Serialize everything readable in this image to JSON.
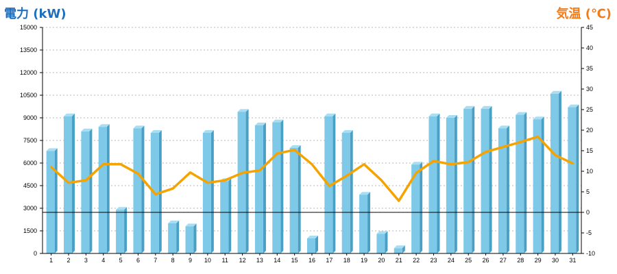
{
  "chart_data": {
    "type": "bar+line",
    "y_left": {
      "label": "電力 (kW)",
      "color": "#1f6fbf",
      "range": [
        0,
        15000
      ],
      "ticks": [
        0,
        1500,
        3000,
        4500,
        6000,
        7500,
        9000,
        10500,
        12000,
        13500,
        15000
      ]
    },
    "y_right": {
      "label": "気温 (℃)",
      "color": "#f07c1c",
      "range": [
        -10,
        45
      ],
      "ticks": [
        -10,
        -5,
        0,
        5,
        10,
        15,
        20,
        25,
        30,
        35,
        40,
        45
      ]
    },
    "categories": [
      "1",
      "2",
      "3",
      "4",
      "5",
      "6",
      "7",
      "8",
      "9",
      "10",
      "11",
      "12",
      "13",
      "14",
      "15",
      "16",
      "17",
      "18",
      "19",
      "20",
      "21",
      "22",
      "23",
      "24",
      "25",
      "26",
      "27",
      "28",
      "29",
      "30",
      "31"
    ],
    "bar_series": {
      "axis": "left",
      "color": "#7ec8e8",
      "values": [
        6800,
        9100,
        8100,
        8400,
        2900,
        8300,
        8000,
        2000,
        1800,
        8000,
        4800,
        9400,
        8500,
        8700,
        7000,
        1000,
        9100,
        8000,
        3900,
        1300,
        350,
        5900,
        9100,
        9000,
        9600,
        9600,
        8300,
        9200,
        8900,
        10600,
        9700
      ]
    },
    "line_series": {
      "axis": "right",
      "color": "#f5a300",
      "values": [
        11.0,
        7.2,
        7.8,
        11.7,
        11.7,
        9.4,
        4.4,
        5.8,
        9.7,
        7.2,
        7.8,
        9.6,
        10.2,
        14.3,
        15.2,
        11.7,
        6.4,
        8.9,
        11.7,
        7.8,
        2.8,
        9.6,
        12.5,
        11.7,
        12.2,
        14.7,
        15.9,
        17.1,
        18.4,
        13.9,
        11.9
      ]
    },
    "reference_line": {
      "axis": "right",
      "value": 0,
      "color": "#000000"
    },
    "grid": true
  }
}
